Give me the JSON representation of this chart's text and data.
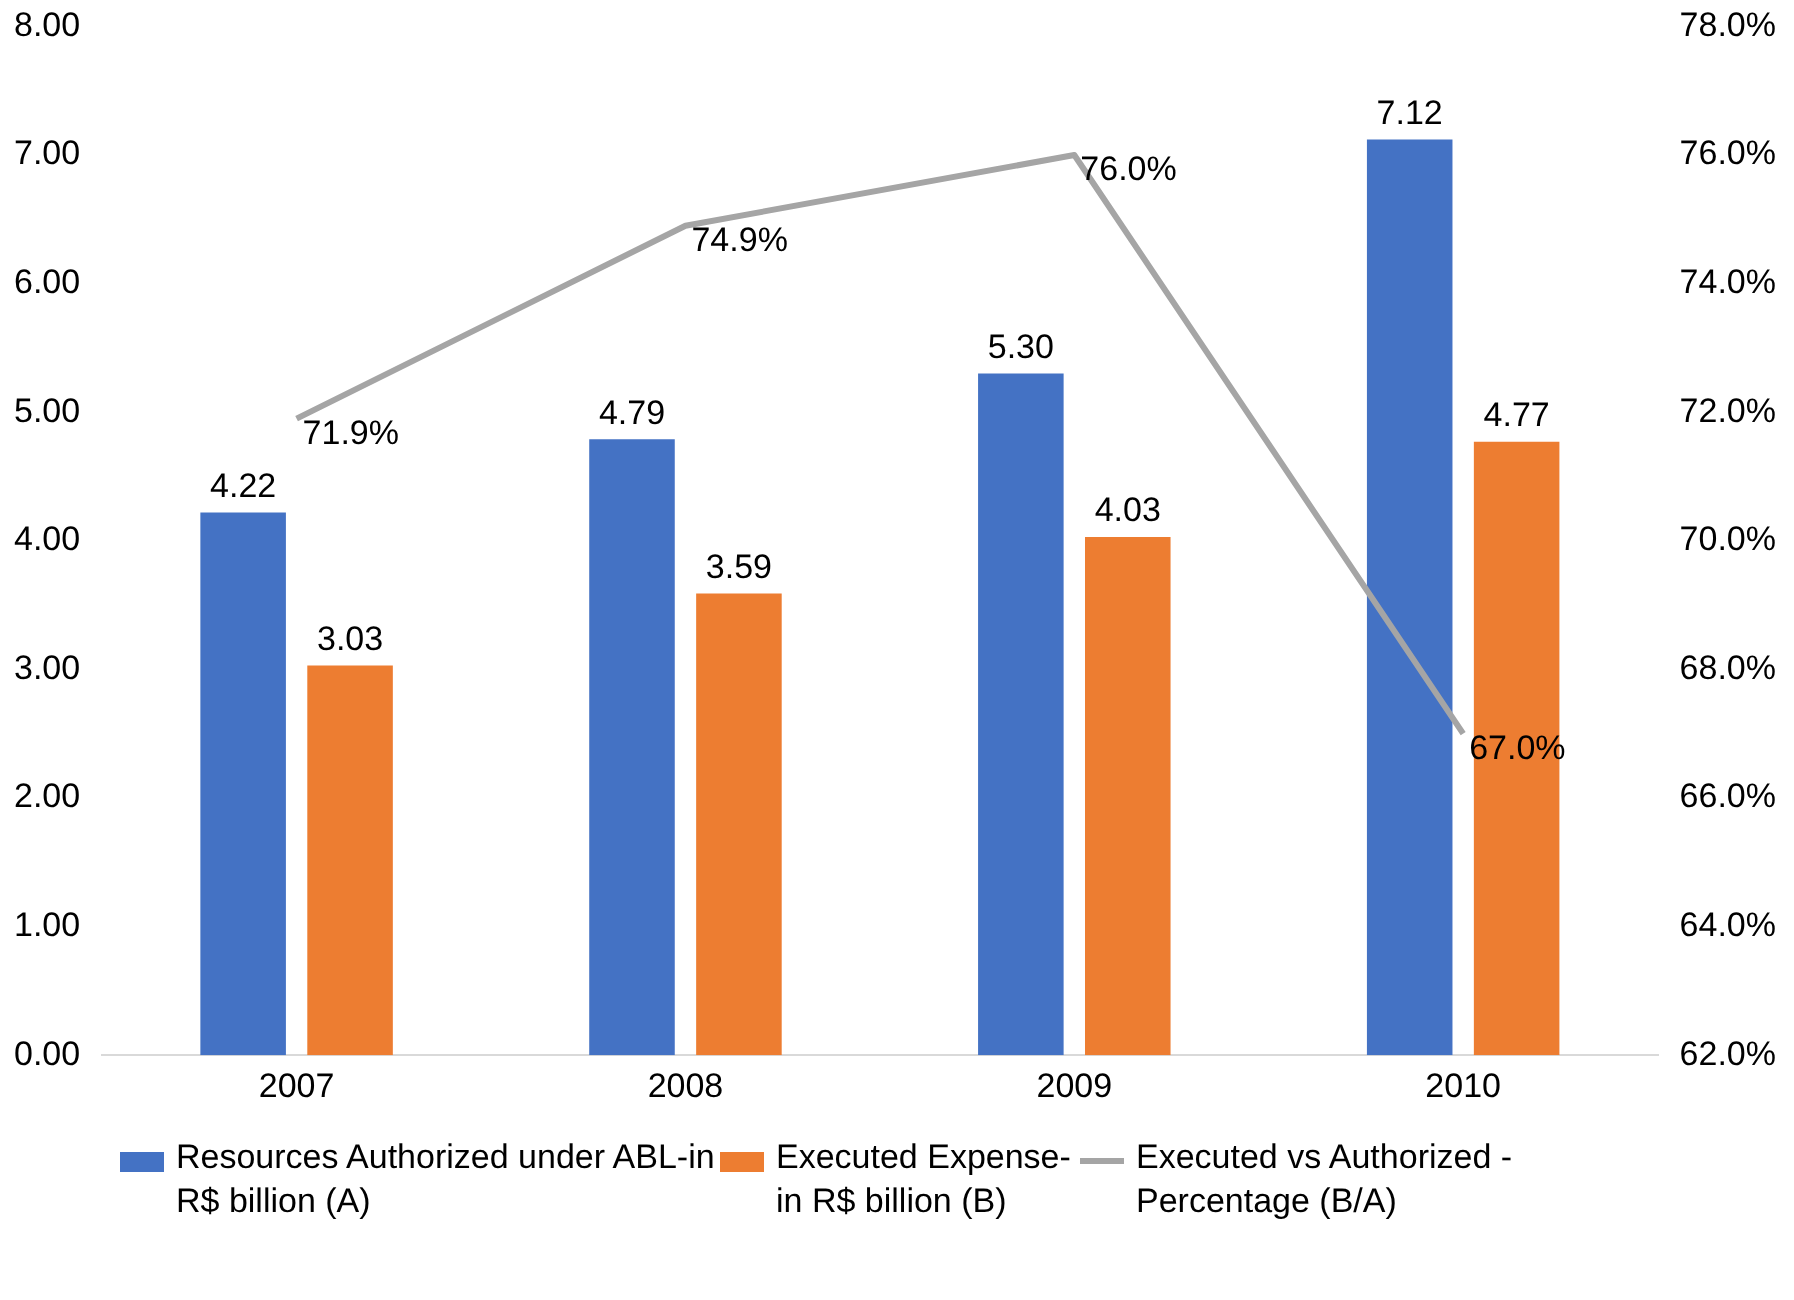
{
  "chart_data": {
    "type": "bar",
    "categories": [
      "2007",
      "2008",
      "2009",
      "2010"
    ],
    "series": [
      {
        "name": "Resources Authorized under ABL-in R$ billion (A)",
        "color": "#4472c4",
        "values": [
          4.22,
          4.79,
          5.3,
          7.12
        ],
        "value_labels": [
          "4.22",
          "4.79",
          "5.30",
          "7.12"
        ]
      },
      {
        "name": "Executed Expense-in R$ billion (B)",
        "color": "#ed7d31",
        "values": [
          3.03,
          3.59,
          4.03,
          4.77
        ],
        "value_labels": [
          "3.03",
          "3.59",
          "4.03",
          "4.77"
        ]
      },
      {
        "name": "Executed vs Authorized - Percentage (B/A)",
        "type": "line",
        "axis": "y2",
        "color": "#a5a5a5",
        "values": [
          71.9,
          74.9,
          76.0,
          67.0
        ],
        "value_labels": [
          "71.9%",
          "74.9%",
          "76.0%",
          "67.0%"
        ]
      }
    ],
    "ylim": [
      0,
      8
    ],
    "yticks": [
      {
        "value": 0,
        "label": "0.00"
      },
      {
        "value": 1,
        "label": "1.00"
      },
      {
        "value": 2,
        "label": "2.00"
      },
      {
        "value": 3,
        "label": "3.00"
      },
      {
        "value": 4,
        "label": "4.00"
      },
      {
        "value": 5,
        "label": "5.00"
      },
      {
        "value": 6,
        "label": "6.00"
      },
      {
        "value": 7,
        "label": "7.00"
      },
      {
        "value": 8,
        "label": "8.00"
      }
    ],
    "y2lim": [
      62,
      78
    ],
    "y2ticks": [
      {
        "value": 62,
        "label": "62.0%"
      },
      {
        "value": 64,
        "label": "64.0%"
      },
      {
        "value": 66,
        "label": "66.0%"
      },
      {
        "value": 68,
        "label": "68.0%"
      },
      {
        "value": 70,
        "label": "70.0%"
      },
      {
        "value": 72,
        "label": "72.0%"
      },
      {
        "value": 74,
        "label": "74.0%"
      },
      {
        "value": 76,
        "label": "76.0%"
      },
      {
        "value": 78,
        "label": "78.0%"
      }
    ],
    "grid": false,
    "legend": "bottom",
    "marker": "none",
    "line_style": "solid"
  }
}
